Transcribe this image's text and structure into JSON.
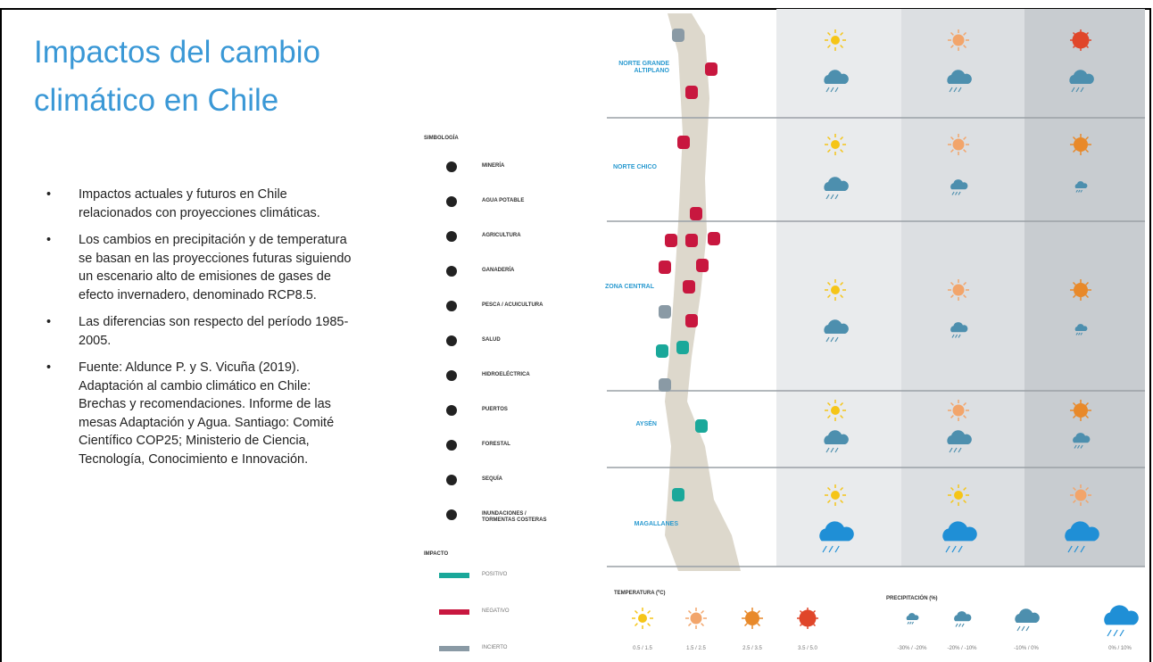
{
  "title": "Impactos del cambio climático en Chile",
  "bullets": [
    "Impactos actuales y futuros en Chile relacionados con proyecciones climáticas.",
    "Los cambios en precipitación y de temperatura se basan en las proyecciones futuras siguiendo un escenario alto de emisiones de gases de efecto invernadero, denominado RCP8.5.",
    "Las diferencias son respecto del período 1985-2005.",
    "Fuente: Aldunce P. y S. Vicuña (2019). Adaptación al cambio climático en Chile: Brechas y recomendaciones. Informe de las mesas Adaptación y Agua. Santiago: Comité Científico COP25; Ministerio de Ciencia, Tecnología, Conocimiento e Innovación."
  ],
  "infographic": {
    "legend_title": "SIMBOLOGÍA",
    "symbols": [
      "MINERÍA",
      "AGUA POTABLE",
      "AGRICULTURA",
      "GANADERÍA",
      "PESCA / ACUICULTURA",
      "SALUD",
      "HIDROELÉCTRICA",
      "PUERTOS",
      "FORESTAL",
      "SEQUÍA",
      "INUNDACIONES / TORMENTAS COSTERAS"
    ],
    "impact_title": "IMPACTO",
    "impacts": [
      "POSITIVO",
      "NEGATIVO",
      "INCIERTO"
    ],
    "regions": [
      "NORTE GRANDE ALTIPLANO",
      "NORTE CHICO",
      "ZONA CENTRAL",
      "AYSÉN",
      "MAGALLANES"
    ],
    "temperature": {
      "title": "TEMPERATURA (ºC)",
      "ranges": [
        "0.5 / 1.5",
        "1.5 / 2.5",
        "2.5 / 3.5",
        "3.5 / 5.0"
      ]
    },
    "precipitation": {
      "title": "PRECIPITACIÓN (%)",
      "ranges": [
        "-30% / -20%",
        "-20% / -10%",
        "-10% / 0%",
        "0% / 10%"
      ]
    }
  }
}
